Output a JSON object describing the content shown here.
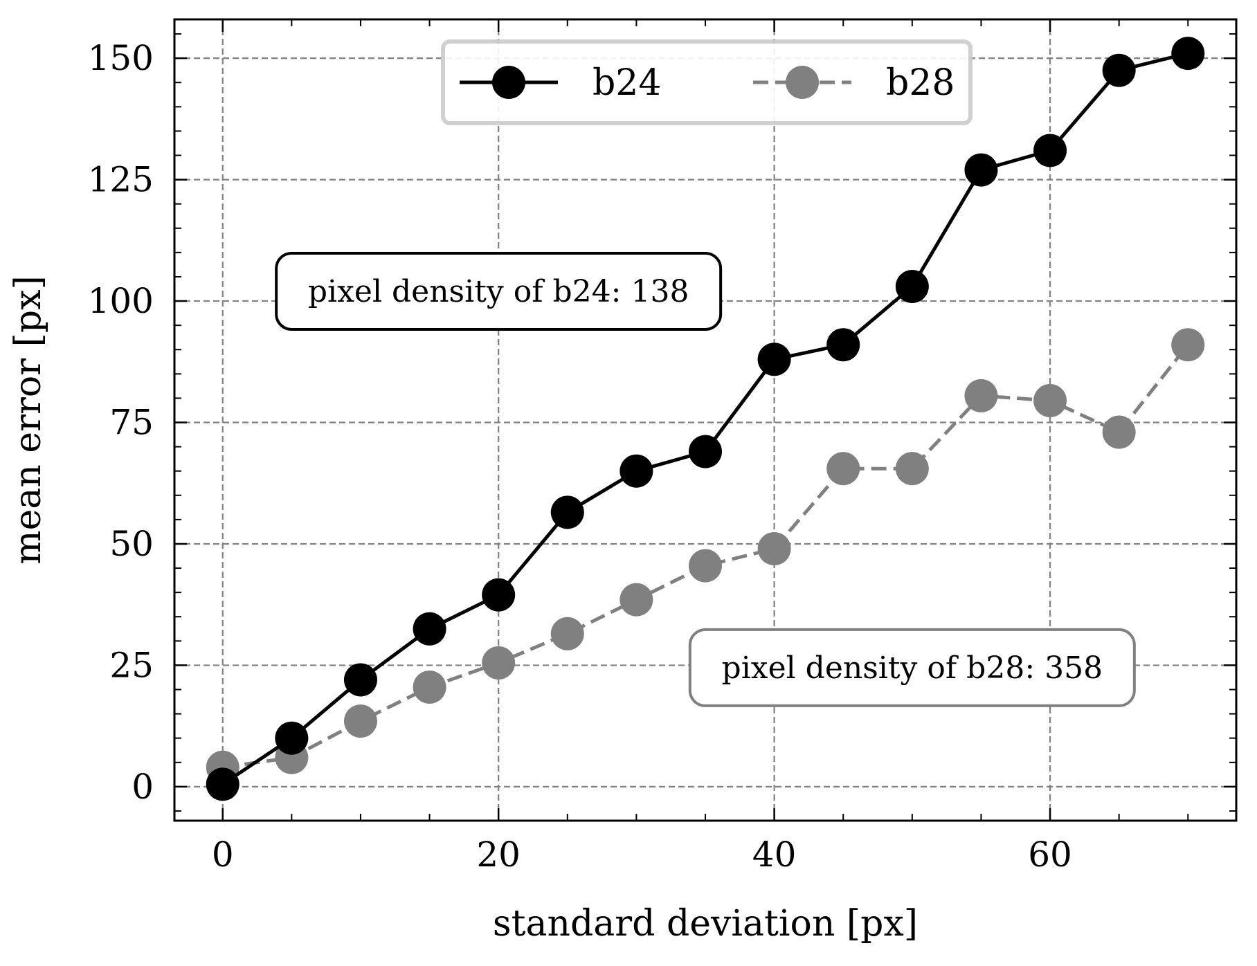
{
  "chart_data": {
    "type": "line",
    "title": "",
    "xlabel": "standard deviation [px]",
    "ylabel": "mean error [px]",
    "xlim": [
      -3.5,
      73.5
    ],
    "ylim": [
      -7,
      158
    ],
    "x_ticks": [
      0,
      20,
      40,
      60
    ],
    "y_ticks": [
      0,
      25,
      50,
      75,
      100,
      125,
      150
    ],
    "x_tick_labels": [
      "0",
      "20",
      "40",
      "60"
    ],
    "y_tick_labels": [
      "0",
      "25",
      "50",
      "75",
      "100",
      "125",
      "150"
    ],
    "grid": true,
    "legend_position": "top-center",
    "x": [
      0,
      5,
      10,
      15,
      20,
      25,
      30,
      35,
      40,
      45,
      50,
      55,
      60,
      65,
      70
    ],
    "series": [
      {
        "name": "b24",
        "color": "#000000",
        "line_style": "solid",
        "values": [
          0.5,
          10,
          22,
          32.5,
          39.5,
          56.5,
          65,
          69,
          88,
          91,
          103,
          127,
          131,
          147.5,
          151
        ]
      },
      {
        "name": "b28",
        "color": "#808080",
        "line_style": "dashed",
        "values": [
          4,
          6,
          13.5,
          20.5,
          25.5,
          31.5,
          38.5,
          45.5,
          49,
          65.5,
          65.5,
          80.5,
          79.5,
          73,
          91
        ]
      }
    ],
    "annotations": [
      {
        "text": "pixel density of b24: 138",
        "x": 20,
        "y": 102,
        "color": "#000000"
      },
      {
        "text": "pixel density of b28: 358",
        "x": 50,
        "y": 24.5,
        "color": "#808080"
      }
    ]
  }
}
